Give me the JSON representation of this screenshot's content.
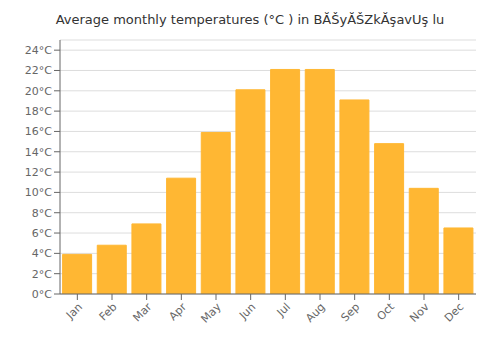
{
  "chart_data": {
    "type": "bar",
    "title": "Average monthly temperatures (°C ) in BĂŠyĂŠZkĂşavUş lu",
    "categories": [
      "Jan",
      "Feb",
      "Mar",
      "Apr",
      "May",
      "Jun",
      "Jul",
      "Aug",
      "Sep",
      "Oct",
      "Nov",
      "Dec"
    ],
    "values": [
      3.9,
      4.8,
      6.9,
      11.4,
      15.9,
      20.1,
      22.1,
      22.1,
      19.1,
      14.8,
      10.4,
      6.5
    ],
    "color": "#FFB733",
    "ylim": [
      0,
      25
    ],
    "yticks": [
      {
        "value": 0,
        "label": "0°C"
      },
      {
        "value": 2,
        "label": "2°C"
      },
      {
        "value": 4,
        "label": "4°C"
      },
      {
        "value": 6,
        "label": "6°C"
      },
      {
        "value": 8,
        "label": "8°C"
      },
      {
        "value": 10,
        "label": "10°C"
      },
      {
        "value": 12,
        "label": "12°C"
      },
      {
        "value": 14,
        "label": "14°C"
      },
      {
        "value": 16,
        "label": "16°C"
      },
      {
        "value": 18,
        "label": "18°C"
      },
      {
        "value": 20,
        "label": "20°C"
      },
      {
        "value": 22,
        "label": "22°C"
      },
      {
        "value": 24,
        "label": "24°C"
      }
    ],
    "grid": true
  }
}
